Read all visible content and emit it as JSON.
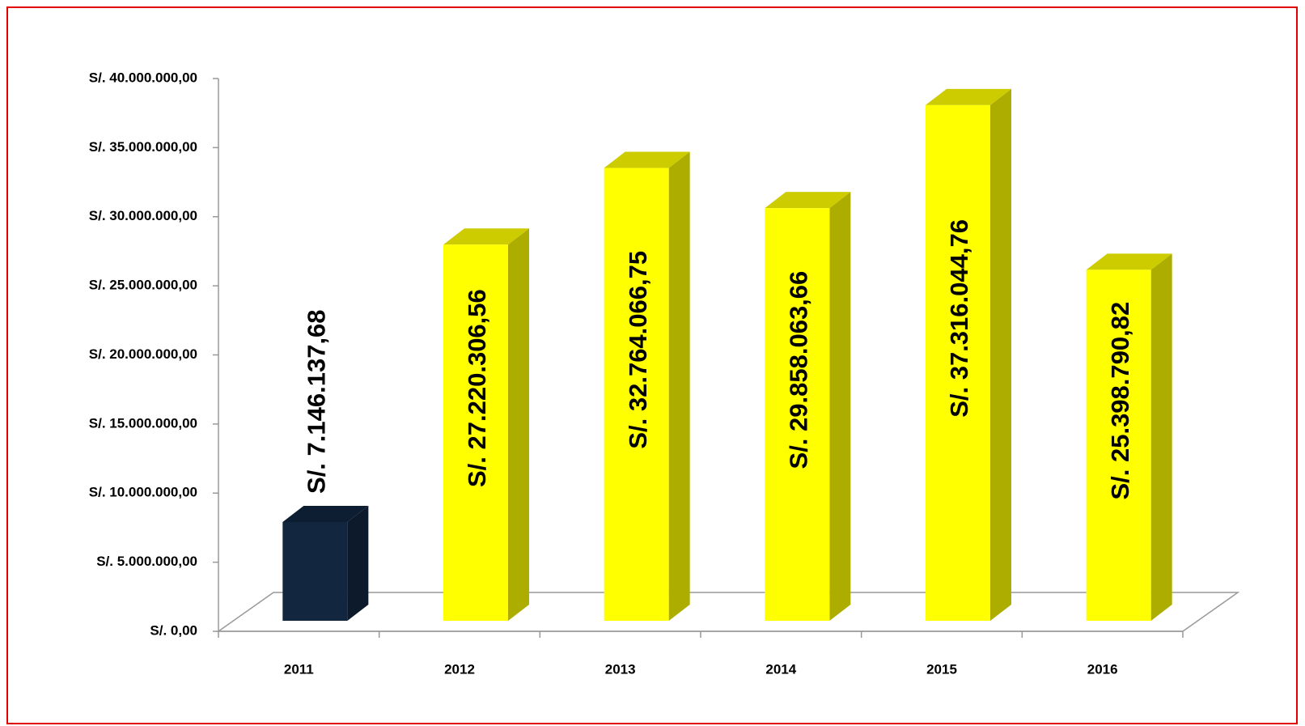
{
  "chart_data": {
    "type": "bar3d",
    "categories": [
      "2011",
      "2012",
      "2013",
      "2014",
      "2015",
      "2016"
    ],
    "values": [
      7146137.68,
      27220306.56,
      32764066.75,
      29858063.66,
      37316044.76,
      25398790.82
    ],
    "value_labels": [
      "S/. 7.146.137,68",
      "S/. 27.220.306,56",
      "S/. 32.764.066,75",
      "S/. 29.858.063,66",
      "S/. 37.316.044,76",
      "S/. 25.398.790,82"
    ],
    "colors": [
      "#12263f",
      "#ffff00",
      "#ffff00",
      "#ffff00",
      "#ffff00",
      "#ffff00"
    ],
    "ylim": [
      0,
      40000000
    ],
    "yticks": [
      {
        "value": 0,
        "label": "S/. 0,00"
      },
      {
        "value": 5000000,
        "label": "S/. 5.000.000,00"
      },
      {
        "value": 10000000,
        "label": "S/. 10.000.000,00"
      },
      {
        "value": 15000000,
        "label": "S/. 15.000.000,00"
      },
      {
        "value": 20000000,
        "label": "S/. 20.000.000,00"
      },
      {
        "value": 25000000,
        "label": "S/. 25.000.000,00"
      },
      {
        "value": 30000000,
        "label": "S/. 30.000.000,00"
      },
      {
        "value": 35000000,
        "label": "S/. 35.000.000,00"
      },
      {
        "value": 40000000,
        "label": "S/. 40.000.000,00"
      }
    ],
    "grid": false
  }
}
